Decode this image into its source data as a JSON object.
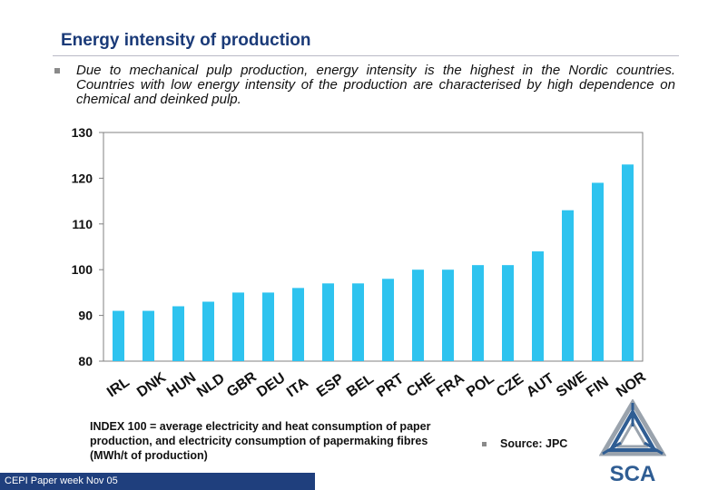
{
  "slide": {
    "title": "Energy intensity of production",
    "bullet": "Due to mechanical pulp production, energy intensity is the highest in the Nordic countries. Countries with low energy intensity of the production are characterised by high dependence on chemical and deinked pulp.",
    "note": "INDEX 100 = average electricity and heat consumption of paper production, and electricity consumption of papermaking fibres (MWh/t of production)",
    "source": "Source: JPC",
    "footer": "CEPI Paper week Nov 05",
    "logo_text": "SCA"
  },
  "colors": {
    "title": "#1a3a78",
    "bar": "#2ec3ef",
    "footer": "#1f3f7d",
    "logo_blue": "#2f5d93",
    "logo_grey": "#9aa3ad"
  },
  "chart_data": {
    "type": "bar",
    "title": "",
    "xlabel": "",
    "ylabel": "",
    "ylim": [
      80,
      130
    ],
    "yticks": [
      80,
      90,
      100,
      110,
      120,
      130
    ],
    "grid": false,
    "categories": [
      "IRL",
      "DNK",
      "HUN",
      "NLD",
      "GBR",
      "DEU",
      "ITA",
      "ESP",
      "BEL",
      "PRT",
      "CHE",
      "FRA",
      "POL",
      "CZE",
      "AUT",
      "SWE",
      "FIN",
      "NOR"
    ],
    "values": [
      91,
      91,
      92,
      93,
      95,
      95,
      96,
      97,
      97,
      98,
      100,
      100,
      101,
      101,
      104,
      113,
      119,
      123
    ]
  }
}
